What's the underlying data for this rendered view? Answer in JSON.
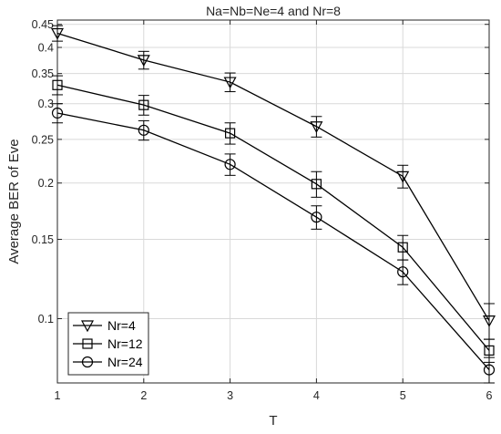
{
  "chart_data": {
    "type": "line",
    "title": "Na=Nb=Ne=4 and Nr=8",
    "xlabel": "T",
    "ylabel": "Average BER of Eve",
    "x": [
      1,
      2,
      3,
      4,
      5,
      6
    ],
    "xlim": [
      1,
      6
    ],
    "ylim": [
      0.072,
      0.46
    ],
    "yscale": "log",
    "grid": true,
    "legend_position": "bottom-left",
    "x_ticks": [
      "1",
      "2",
      "3",
      "4",
      "5",
      "6"
    ],
    "y_ticks": [
      {
        "value": 0.1,
        "label": "0.1"
      },
      {
        "value": 0.15,
        "label": "0.15"
      },
      {
        "value": 0.2,
        "label": "0.2"
      },
      {
        "value": 0.25,
        "label": "0.25"
      },
      {
        "value": 0.3,
        "label": "0.3"
      },
      {
        "value": 0.35,
        "label": "0.35"
      },
      {
        "value": 0.4,
        "label": "0.4"
      },
      {
        "value": 0.45,
        "label": "0.45"
      }
    ],
    "series": [
      {
        "name": "Nr=4",
        "marker": "triangle-down",
        "values": [
          0.43,
          0.375,
          0.335,
          0.267,
          0.207,
          0.099
        ],
        "error": [
          0.017,
          0.017,
          0.016,
          0.014,
          0.012,
          0.009
        ]
      },
      {
        "name": "Nr=12",
        "marker": "square",
        "values": [
          0.33,
          0.298,
          0.258,
          0.199,
          0.144,
          0.085
        ],
        "error": [
          0.016,
          0.015,
          0.014,
          0.013,
          0.009,
          0.005
        ]
      },
      {
        "name": "Nr=24",
        "marker": "circle",
        "values": [
          0.286,
          0.262,
          0.22,
          0.168,
          0.127,
          0.077
        ],
        "error": [
          0.014,
          0.013,
          0.012,
          0.01,
          0.008,
          0.005
        ]
      }
    ]
  }
}
